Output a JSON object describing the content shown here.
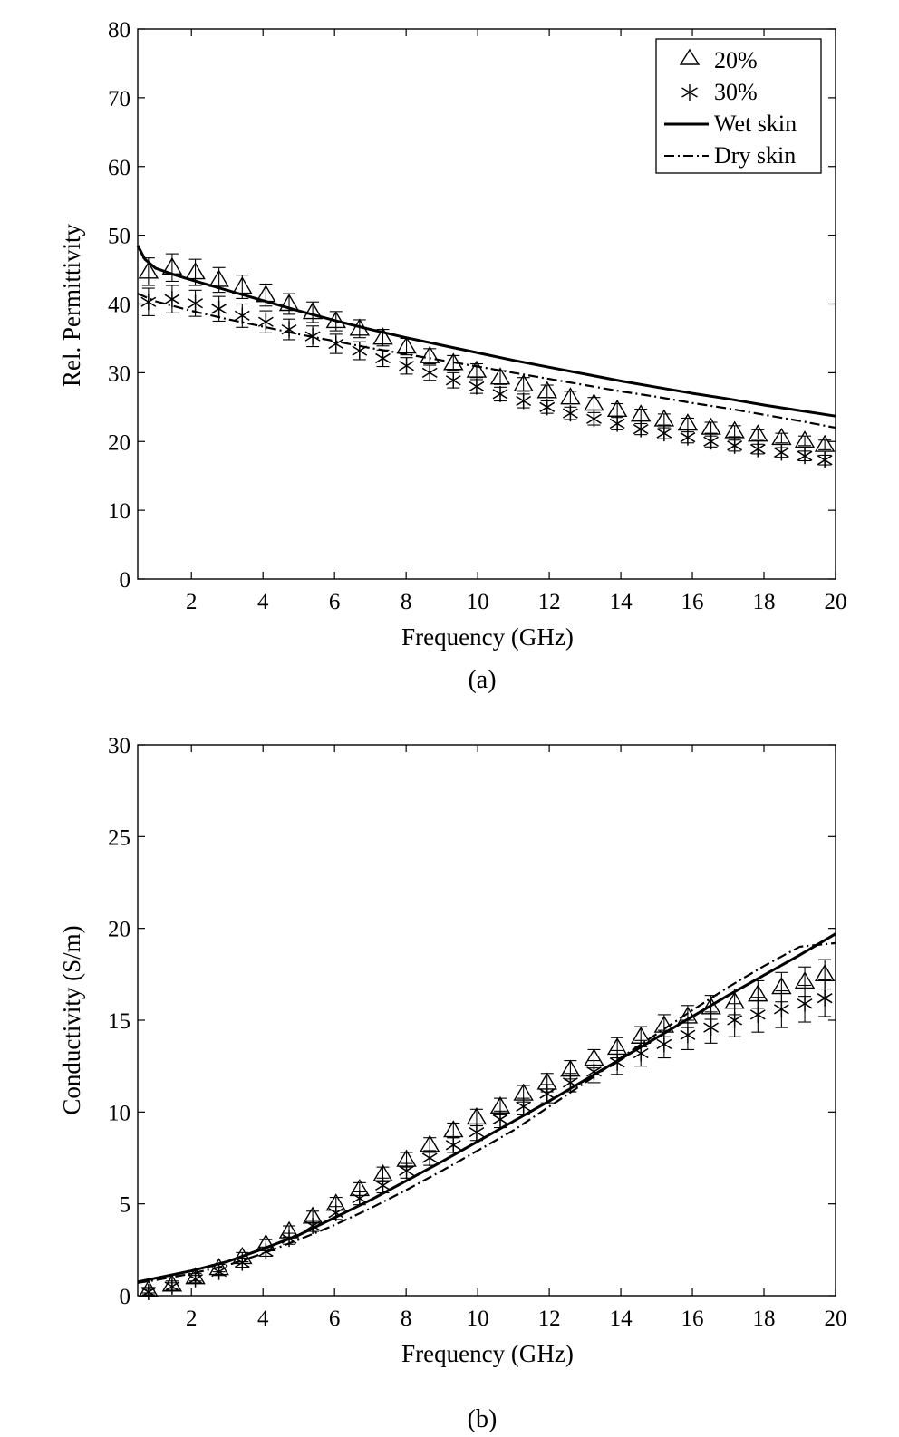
{
  "chart_data": [
    {
      "type": "line",
      "caption": "(a)",
      "xlabel": "Frequency (GHz)",
      "ylabel": "Rel. Permittivity",
      "xlim": [
        0.5,
        20
      ],
      "ylim": [
        0,
        80
      ],
      "xticks": [
        2,
        4,
        6,
        8,
        10,
        12,
        14,
        16,
        18,
        20
      ],
      "yticks": [
        0,
        10,
        20,
        30,
        40,
        50,
        60,
        70,
        80
      ],
      "grid": false,
      "legend": "top-right",
      "legend_entries": [
        "20%",
        "30%",
        "Wet skin",
        "Dry skin"
      ],
      "series": [
        {
          "name": "20%",
          "marker": "triangle",
          "x": [
            0.8,
            1.46,
            2.11,
            2.77,
            3.42,
            4.08,
            4.73,
            5.39,
            6.04,
            6.7,
            7.35,
            8.01,
            8.66,
            9.32,
            9.97,
            10.63,
            11.28,
            11.94,
            12.59,
            13.25,
            13.9,
            14.56,
            15.21,
            15.87,
            16.52,
            17.18,
            17.83,
            18.49,
            19.14,
            19.7
          ],
          "y": [
            44.7,
            45.3,
            44.6,
            43.5,
            42.5,
            41.3,
            40.0,
            38.8,
            37.5,
            36.4,
            35.1,
            33.8,
            32.4,
            31.4,
            30.3,
            29.3,
            28.3,
            27.3,
            26.4,
            25.5,
            24.6,
            23.9,
            23.2,
            22.6,
            22.0,
            21.5,
            21.0,
            20.5,
            20.1,
            19.5
          ],
          "err": [
            2.0,
            2.0,
            1.9,
            1.8,
            1.7,
            1.6,
            1.5,
            1.5,
            1.4,
            1.3,
            1.2,
            1.2,
            1.1,
            1.1,
            1.0,
            1.0,
            1.0,
            0.9,
            0.9,
            0.9,
            0.9,
            0.8,
            0.8,
            0.8,
            0.8,
            0.8,
            0.7,
            0.7,
            0.7,
            0.7
          ]
        },
        {
          "name": "30%",
          "marker": "asterisk",
          "x": [
            0.8,
            1.46,
            2.11,
            2.77,
            3.42,
            4.08,
            4.73,
            5.39,
            6.04,
            6.7,
            7.35,
            8.01,
            8.66,
            9.32,
            9.97,
            10.63,
            11.28,
            11.94,
            12.59,
            13.25,
            13.9,
            14.56,
            15.21,
            15.87,
            16.52,
            17.18,
            17.83,
            18.49,
            19.14,
            19.7
          ],
          "y": [
            40.3,
            40.7,
            40.1,
            39.3,
            38.3,
            37.4,
            36.3,
            35.3,
            34.2,
            33.2,
            32.1,
            31.0,
            30.0,
            28.9,
            28.0,
            26.9,
            25.9,
            25.0,
            24.1,
            23.3,
            22.6,
            21.8,
            21.2,
            20.6,
            20.0,
            19.4,
            18.9,
            18.4,
            17.9,
            17.3
          ],
          "err": [
            2.0,
            2.0,
            1.9,
            1.8,
            1.7,
            1.6,
            1.5,
            1.5,
            1.4,
            1.3,
            1.2,
            1.2,
            1.1,
            1.1,
            1.0,
            1.0,
            1.0,
            0.9,
            0.9,
            0.9,
            0.9,
            0.8,
            0.8,
            0.8,
            0.8,
            0.8,
            0.7,
            0.7,
            0.7,
            0.7
          ]
        },
        {
          "name": "Wet skin",
          "line": "solid",
          "x": [
            0.5,
            0.7,
            1.0,
            1.5,
            2,
            3,
            4,
            5,
            6,
            7,
            8,
            9,
            10,
            11,
            12,
            13,
            14,
            15,
            16,
            17,
            18,
            19,
            20
          ],
          "y": [
            48.5,
            46.5,
            45.2,
            44.3,
            43.5,
            42.0,
            40.5,
            39.0,
            37.6,
            36.3,
            35.1,
            34.0,
            32.9,
            31.8,
            30.8,
            29.8,
            28.8,
            27.9,
            27.0,
            26.2,
            25.3,
            24.5,
            23.7
          ]
        },
        {
          "name": "Dry skin",
          "line": "dashdot",
          "x": [
            0.5,
            1,
            2,
            3,
            4,
            5,
            6,
            7,
            8,
            9,
            10,
            11,
            12,
            13,
            14,
            15,
            16,
            17,
            18,
            19,
            20
          ],
          "y": [
            41.5,
            40.4,
            39.0,
            37.8,
            36.7,
            35.6,
            34.6,
            33.6,
            32.7,
            31.8,
            30.9,
            30.0,
            29.1,
            28.2,
            27.3,
            26.5,
            25.6,
            24.8,
            23.9,
            23.0,
            22.0
          ]
        }
      ]
    },
    {
      "type": "line",
      "caption": "(b)",
      "xlabel": "Frequency (GHz)",
      "ylabel": "Conductivity (S/m)",
      "xlim": [
        0.5,
        20
      ],
      "ylim": [
        0,
        30
      ],
      "xticks": [
        2,
        4,
        6,
        8,
        10,
        12,
        14,
        16,
        18,
        20
      ],
      "yticks": [
        0,
        5,
        10,
        15,
        20,
        25,
        30
      ],
      "grid": false,
      "legend": "none",
      "series": [
        {
          "name": "20%",
          "marker": "triangle",
          "x": [
            0.8,
            1.46,
            2.11,
            2.77,
            3.42,
            4.08,
            4.73,
            5.39,
            6.04,
            6.7,
            7.35,
            8.01,
            8.66,
            9.32,
            9.97,
            10.63,
            11.28,
            11.94,
            12.59,
            13.25,
            13.9,
            14.56,
            15.21,
            15.87,
            16.52,
            17.18,
            17.83,
            18.49,
            19.14,
            19.7
          ],
          "y": [
            0.3,
            0.6,
            1.0,
            1.5,
            2.1,
            2.8,
            3.5,
            4.3,
            5.0,
            5.8,
            6.6,
            7.4,
            8.2,
            9.0,
            9.7,
            10.3,
            11.0,
            11.6,
            12.3,
            12.9,
            13.5,
            14.1,
            14.7,
            15.2,
            15.7,
            16.0,
            16.4,
            16.8,
            17.1,
            17.5
          ],
          "err": [
            0.15,
            0.2,
            0.2,
            0.2,
            0.25,
            0.25,
            0.3,
            0.3,
            0.35,
            0.35,
            0.4,
            0.4,
            0.4,
            0.4,
            0.45,
            0.45,
            0.45,
            0.5,
            0.5,
            0.5,
            0.55,
            0.55,
            0.6,
            0.6,
            0.65,
            0.7,
            0.75,
            0.8,
            0.8,
            0.8
          ]
        },
        {
          "name": "30%",
          "marker": "asterisk",
          "x": [
            0.8,
            1.46,
            2.11,
            2.77,
            3.42,
            4.08,
            4.73,
            5.39,
            6.04,
            6.7,
            7.35,
            8.01,
            8.66,
            9.32,
            9.97,
            10.63,
            11.28,
            11.94,
            12.59,
            13.25,
            13.9,
            14.56,
            15.21,
            15.87,
            16.52,
            17.18,
            17.83,
            18.49,
            19.14,
            19.7
          ],
          "y": [
            0.2,
            0.5,
            0.9,
            1.3,
            1.8,
            2.4,
            3.1,
            3.8,
            4.5,
            5.3,
            6.0,
            6.8,
            7.5,
            8.2,
            8.9,
            9.6,
            10.3,
            11.0,
            11.6,
            12.2,
            12.7,
            13.2,
            13.7,
            14.2,
            14.6,
            15.0,
            15.3,
            15.6,
            15.9,
            16.2
          ],
          "err": [
            0.15,
            0.2,
            0.2,
            0.2,
            0.25,
            0.25,
            0.3,
            0.3,
            0.35,
            0.35,
            0.4,
            0.4,
            0.4,
            0.4,
            0.45,
            0.45,
            0.45,
            0.5,
            0.5,
            0.6,
            0.65,
            0.7,
            0.75,
            0.8,
            0.85,
            0.9,
            0.95,
            1.0,
            1.0,
            1.0
          ]
        },
        {
          "name": "Wet skin",
          "line": "solid",
          "x": [
            0.5,
            1,
            2,
            3,
            4,
            5,
            6,
            7,
            8,
            9,
            10,
            11,
            12,
            13,
            14,
            15,
            16,
            17,
            18,
            19,
            20
          ],
          "y": [
            0.75,
            0.95,
            1.35,
            1.85,
            2.55,
            3.3,
            4.25,
            5.2,
            6.25,
            7.3,
            8.4,
            9.5,
            10.6,
            11.75,
            12.9,
            14.05,
            15.2,
            16.35,
            17.45,
            18.55,
            19.7
          ]
        },
        {
          "name": "Dry skin",
          "line": "dashdot",
          "x": [
            0.5,
            1,
            2,
            3,
            4,
            5,
            6,
            7,
            8,
            9,
            10,
            11,
            12,
            13,
            14,
            15,
            16,
            17,
            18,
            19,
            20
          ],
          "y": [
            0.7,
            0.85,
            1.2,
            1.65,
            2.3,
            3.05,
            3.85,
            4.75,
            5.75,
            6.8,
            7.9,
            9.0,
            10.3,
            11.6,
            12.95,
            14.25,
            15.55,
            16.8,
            17.95,
            19.0,
            19.2
          ]
        }
      ]
    }
  ]
}
